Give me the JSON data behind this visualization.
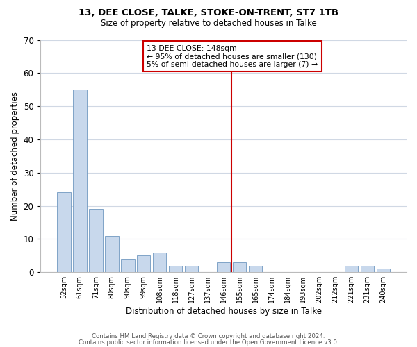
{
  "title1": "13, DEE CLOSE, TALKE, STOKE-ON-TRENT, ST7 1TB",
  "title2": "Size of property relative to detached houses in Talke",
  "xlabel": "Distribution of detached houses by size in Talke",
  "ylabel": "Number of detached properties",
  "bin_labels": [
    "52sqm",
    "61sqm",
    "71sqm",
    "80sqm",
    "90sqm",
    "99sqm",
    "108sqm",
    "118sqm",
    "127sqm",
    "137sqm",
    "146sqm",
    "155sqm",
    "165sqm",
    "174sqm",
    "184sqm",
    "193sqm",
    "202sqm",
    "212sqm",
    "221sqm",
    "231sqm",
    "240sqm"
  ],
  "bar_values": [
    24,
    55,
    19,
    11,
    4,
    5,
    6,
    2,
    2,
    0,
    3,
    3,
    2,
    0,
    0,
    0,
    0,
    0,
    2,
    2,
    1
  ],
  "bar_color": "#c8d8ec",
  "bar_edge_color": "#7098c0",
  "ylim": [
    0,
    70
  ],
  "yticks": [
    0,
    10,
    20,
    30,
    40,
    50,
    60,
    70
  ],
  "vline_x": 10.5,
  "vline_color": "#cc0000",
  "annotation_title": "13 DEE CLOSE: 148sqm",
  "annotation_line1": "← 95% of detached houses are smaller (130)",
  "annotation_line2": "5% of semi-detached houses are larger (7) →",
  "annotation_box_color": "#cc0000",
  "footer1": "Contains HM Land Registry data © Crown copyright and database right 2024.",
  "footer2": "Contains public sector information licensed under the Open Government Licence v3.0.",
  "bg_color": "#ffffff",
  "grid_color": "#d0d8e4"
}
